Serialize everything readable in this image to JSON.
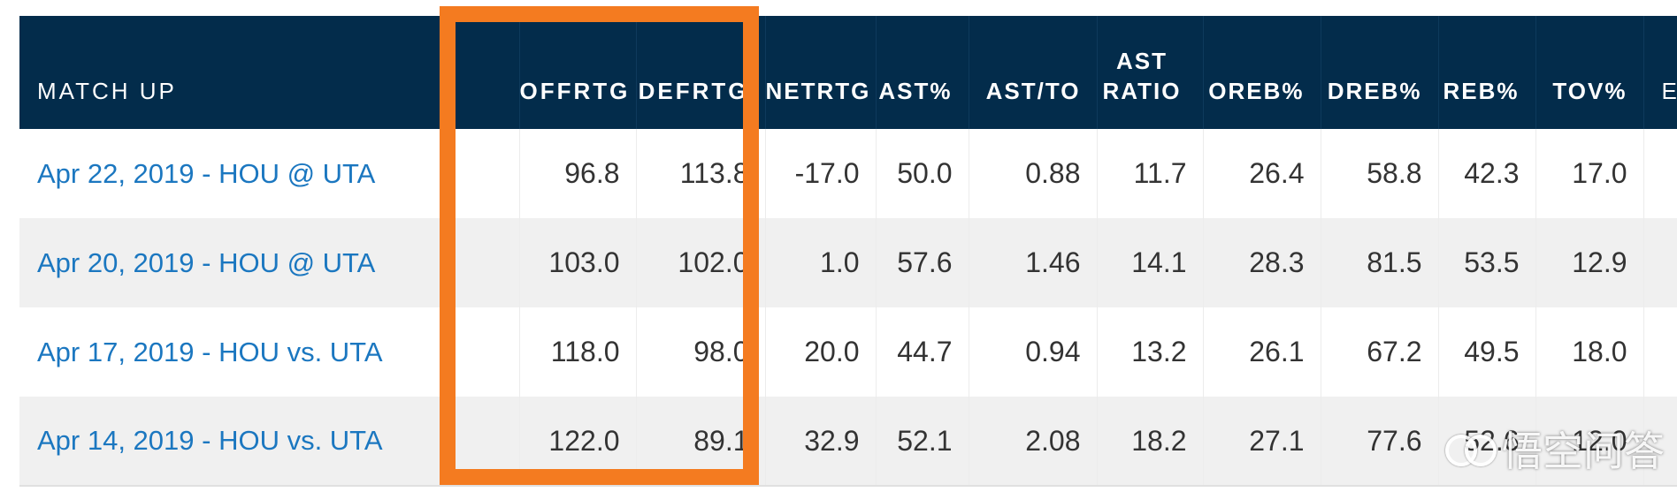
{
  "table": {
    "headers": [
      "MATCH UP",
      "",
      "OFFRTG",
      "DEFRTG",
      "NETRTG",
      "AST%",
      "AST/TO",
      [
        "AST",
        "RATIO"
      ],
      "OREB%",
      "DREB%",
      "REB%",
      "TOV%",
      "E"
    ],
    "rows": [
      {
        "match": "Apr 22, 2019 - HOU @ UTA",
        "offrtg": "96.8",
        "defrtg": "113.8",
        "netrtg": "-17.0",
        "ast_pct": "50.0",
        "ast_to": "0.88",
        "ast_ratio": "11.7",
        "oreb_pct": "26.4",
        "dreb_pct": "58.8",
        "reb_pct": "42.3",
        "tov_pct": "17.0"
      },
      {
        "match": "Apr 20, 2019 - HOU @ UTA",
        "offrtg": "103.0",
        "defrtg": "102.0",
        "netrtg": "1.0",
        "ast_pct": "57.6",
        "ast_to": "1.46",
        "ast_ratio": "14.1",
        "oreb_pct": "28.3",
        "dreb_pct": "81.5",
        "reb_pct": "53.5",
        "tov_pct": "12.9"
      },
      {
        "match": "Apr 17, 2019 - HOU vs. UTA",
        "offrtg": "118.0",
        "defrtg": "98.0",
        "netrtg": "20.0",
        "ast_pct": "44.7",
        "ast_to": "0.94",
        "ast_ratio": "13.2",
        "oreb_pct": "26.1",
        "dreb_pct": "67.2",
        "reb_pct": "49.5",
        "tov_pct": "18.0"
      },
      {
        "match": "Apr 14, 2019 - HOU vs. UTA",
        "offrtg": "122.0",
        "defrtg": "89.1",
        "netrtg": "32.9",
        "ast_pct": "52.1",
        "ast_to": "2.08",
        "ast_ratio": "18.2",
        "oreb_pct": "27.1",
        "dreb_pct": "77.6",
        "reb_pct": "52.6",
        "tov_pct": "12.0"
      }
    ]
  },
  "highlight": {
    "color": "#f47b20",
    "columns": [
      "OFFRTG",
      "DEFRTG"
    ]
  },
  "colors": {
    "header_bg": "#032c4b",
    "link": "#1b77c0",
    "row_alt": "#f0f0f0"
  },
  "watermark": {
    "text": "悟空问答",
    "icon": "wukong-logo-icon"
  }
}
